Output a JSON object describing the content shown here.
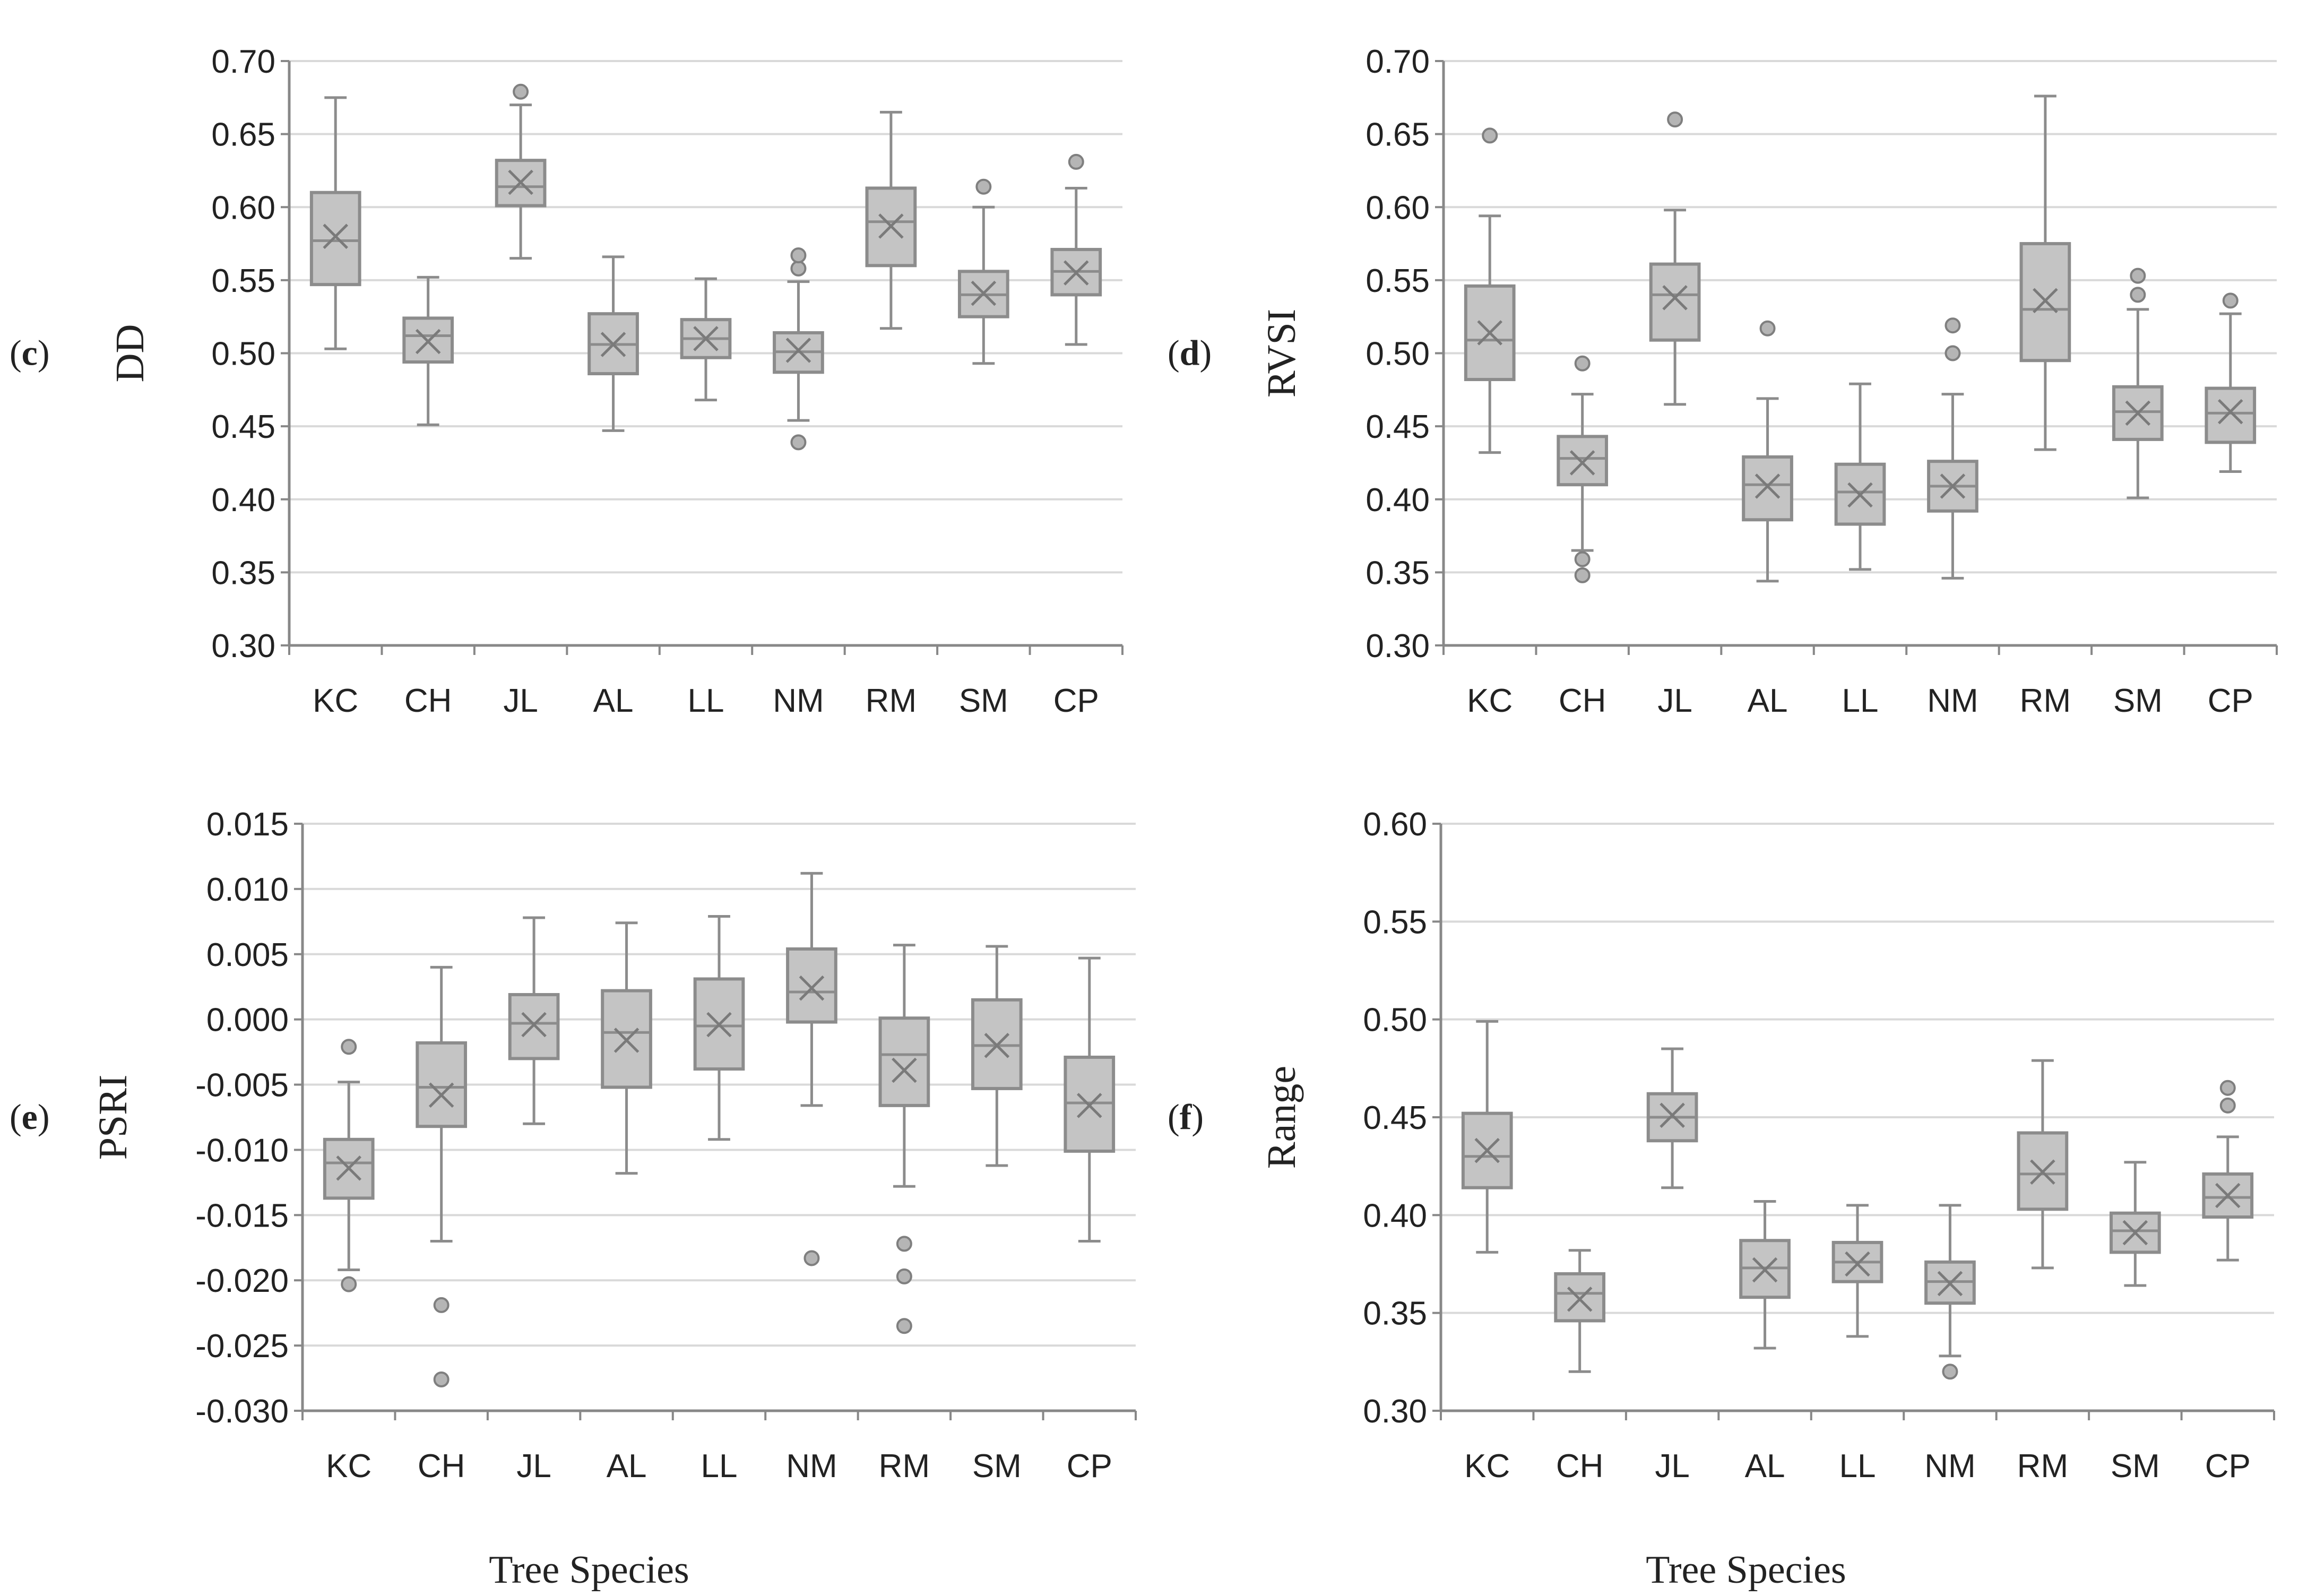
{
  "shared": {
    "categories": [
      "KC",
      "CH",
      "JL",
      "AL",
      "LL",
      "NM",
      "RM",
      "SM",
      "CP"
    ],
    "xlabel": "Tree Species"
  },
  "chart_data": [
    {
      "type": "box",
      "panel": "(c)",
      "ylabel": "DD",
      "categories": [
        "KC",
        "CH",
        "JL",
        "AL",
        "LL",
        "NM",
        "RM",
        "SM",
        "CP"
      ],
      "ylim": [
        0.3,
        0.7
      ],
      "yticks": [
        0.3,
        0.35,
        0.4,
        0.45,
        0.5,
        0.55,
        0.6,
        0.65,
        0.7
      ],
      "decimals": 2,
      "grid": true,
      "boxes": [
        {
          "category": "KC",
          "min": 0.503,
          "q1": 0.547,
          "median": 0.577,
          "q3": 0.61,
          "max": 0.675,
          "mean": 0.58,
          "outliers": []
        },
        {
          "category": "CH",
          "min": 0.451,
          "q1": 0.494,
          "median": 0.512,
          "q3": 0.524,
          "max": 0.552,
          "mean": 0.508,
          "outliers": []
        },
        {
          "category": "JL",
          "min": 0.565,
          "q1": 0.601,
          "median": 0.614,
          "q3": 0.632,
          "max": 0.67,
          "mean": 0.617,
          "outliers": [
            0.679
          ]
        },
        {
          "category": "AL",
          "min": 0.447,
          "q1": 0.486,
          "median": 0.506,
          "q3": 0.527,
          "max": 0.566,
          "mean": 0.506,
          "outliers": []
        },
        {
          "category": "LL",
          "min": 0.468,
          "q1": 0.497,
          "median": 0.51,
          "q3": 0.523,
          "max": 0.551,
          "mean": 0.51,
          "outliers": []
        },
        {
          "category": "NM",
          "min": 0.454,
          "q1": 0.487,
          "median": 0.501,
          "q3": 0.514,
          "max": 0.549,
          "mean": 0.502,
          "outliers": [
            0.439,
            0.558,
            0.567
          ]
        },
        {
          "category": "RM",
          "min": 0.517,
          "q1": 0.56,
          "median": 0.59,
          "q3": 0.613,
          "max": 0.665,
          "mean": 0.587,
          "outliers": []
        },
        {
          "category": "SM",
          "min": 0.493,
          "q1": 0.525,
          "median": 0.54,
          "q3": 0.556,
          "max": 0.6,
          "mean": 0.541,
          "outliers": [
            0.614
          ]
        },
        {
          "category": "CP",
          "min": 0.506,
          "q1": 0.54,
          "median": 0.556,
          "q3": 0.571,
          "max": 0.613,
          "mean": 0.555,
          "outliers": [
            0.631
          ]
        }
      ]
    },
    {
      "type": "box",
      "panel": "(d)",
      "ylabel": "RVSI",
      "categories": [
        "KC",
        "CH",
        "JL",
        "AL",
        "LL",
        "NM",
        "RM",
        "SM",
        "CP"
      ],
      "ylim": [
        0.3,
        0.7
      ],
      "yticks": [
        0.3,
        0.35,
        0.4,
        0.45,
        0.5,
        0.55,
        0.6,
        0.65,
        0.7
      ],
      "decimals": 2,
      "grid": true,
      "boxes": [
        {
          "category": "KC",
          "min": 0.432,
          "q1": 0.482,
          "median": 0.509,
          "q3": 0.546,
          "max": 0.594,
          "mean": 0.514,
          "outliers": [
            0.649
          ]
        },
        {
          "category": "CH",
          "min": 0.365,
          "q1": 0.41,
          "median": 0.428,
          "q3": 0.443,
          "max": 0.472,
          "mean": 0.425,
          "outliers": [
            0.348,
            0.359,
            0.493
          ]
        },
        {
          "category": "JL",
          "min": 0.465,
          "q1": 0.509,
          "median": 0.54,
          "q3": 0.561,
          "max": 0.598,
          "mean": 0.538,
          "outliers": [
            0.66
          ]
        },
        {
          "category": "AL",
          "min": 0.344,
          "q1": 0.386,
          "median": 0.41,
          "q3": 0.429,
          "max": 0.469,
          "mean": 0.409,
          "outliers": [
            0.517
          ]
        },
        {
          "category": "LL",
          "min": 0.352,
          "q1": 0.383,
          "median": 0.405,
          "q3": 0.424,
          "max": 0.479,
          "mean": 0.403,
          "outliers": []
        },
        {
          "category": "NM",
          "min": 0.346,
          "q1": 0.392,
          "median": 0.409,
          "q3": 0.426,
          "max": 0.472,
          "mean": 0.409,
          "outliers": [
            0.5,
            0.519
          ]
        },
        {
          "category": "RM",
          "min": 0.434,
          "q1": 0.495,
          "median": 0.53,
          "q3": 0.575,
          "max": 0.676,
          "mean": 0.536,
          "outliers": []
        },
        {
          "category": "SM",
          "min": 0.401,
          "q1": 0.441,
          "median": 0.46,
          "q3": 0.477,
          "max": 0.53,
          "mean": 0.459,
          "outliers": [
            0.54,
            0.553
          ]
        },
        {
          "category": "CP",
          "min": 0.419,
          "q1": 0.439,
          "median": 0.459,
          "q3": 0.476,
          "max": 0.527,
          "mean": 0.46,
          "outliers": [
            0.536
          ]
        }
      ]
    },
    {
      "type": "box",
      "panel": "(e)",
      "ylabel": "PSRI",
      "categories": [
        "KC",
        "CH",
        "JL",
        "AL",
        "LL",
        "NM",
        "RM",
        "SM",
        "CP"
      ],
      "ylim": [
        -0.03,
        0.015
      ],
      "yticks": [
        -0.03,
        -0.025,
        -0.02,
        -0.015,
        -0.01,
        -0.005,
        0.0,
        0.005,
        0.01,
        0.015
      ],
      "decimals": 3,
      "grid": true,
      "boxes": [
        {
          "category": "KC",
          "min": -0.0192,
          "q1": -0.0137,
          "median": -0.011,
          "q3": -0.0092,
          "max": -0.0048,
          "mean": -0.0114,
          "outliers": [
            -0.0203,
            -0.0021
          ]
        },
        {
          "category": "CH",
          "min": -0.017,
          "q1": -0.0082,
          "median": -0.0052,
          "q3": -0.0018,
          "max": 0.004,
          "mean": -0.0058,
          "outliers": [
            -0.0276,
            -0.0219
          ]
        },
        {
          "category": "JL",
          "min": -0.008,
          "q1": -0.003,
          "median": -0.0003,
          "q3": 0.0019,
          "max": 0.0078,
          "mean": -0.0004,
          "outliers": []
        },
        {
          "category": "AL",
          "min": -0.0118,
          "q1": -0.0052,
          "median": -0.001,
          "q3": 0.0022,
          "max": 0.0074,
          "mean": -0.0016,
          "outliers": []
        },
        {
          "category": "LL",
          "min": -0.0092,
          "q1": -0.0038,
          "median": -0.0005,
          "q3": 0.0031,
          "max": 0.0079,
          "mean": -0.0004,
          "outliers": []
        },
        {
          "category": "NM",
          "min": -0.0066,
          "q1": -0.0002,
          "median": 0.0021,
          "q3": 0.0054,
          "max": 0.0112,
          "mean": 0.0024,
          "outliers": [
            -0.0183
          ]
        },
        {
          "category": "RM",
          "min": -0.0128,
          "q1": -0.0066,
          "median": -0.0027,
          "q3": 0.0001,
          "max": 0.0057,
          "mean": -0.0039,
          "outliers": [
            -0.0235,
            -0.0197,
            -0.0172
          ]
        },
        {
          "category": "SM",
          "min": -0.0112,
          "q1": -0.0053,
          "median": -0.002,
          "q3": 0.0015,
          "max": 0.0056,
          "mean": -0.002,
          "outliers": []
        },
        {
          "category": "CP",
          "min": -0.017,
          "q1": -0.0101,
          "median": -0.0064,
          "q3": -0.0029,
          "max": 0.0047,
          "mean": -0.0066,
          "outliers": []
        }
      ]
    },
    {
      "type": "box",
      "panel": "(f)",
      "ylabel": "Range",
      "categories": [
        "KC",
        "CH",
        "JL",
        "AL",
        "LL",
        "NM",
        "RM",
        "SM",
        "CP"
      ],
      "ylim": [
        0.3,
        0.6
      ],
      "yticks": [
        0.3,
        0.35,
        0.4,
        0.45,
        0.5,
        0.55,
        0.6
      ],
      "decimals": 2,
      "grid": true,
      "boxes": [
        {
          "category": "KC",
          "min": 0.381,
          "q1": 0.414,
          "median": 0.43,
          "q3": 0.452,
          "max": 0.499,
          "mean": 0.433,
          "outliers": []
        },
        {
          "category": "CH",
          "min": 0.32,
          "q1": 0.346,
          "median": 0.36,
          "q3": 0.37,
          "max": 0.382,
          "mean": 0.357,
          "outliers": []
        },
        {
          "category": "JL",
          "min": 0.414,
          "q1": 0.438,
          "median": 0.45,
          "q3": 0.462,
          "max": 0.485,
          "mean": 0.451,
          "outliers": []
        },
        {
          "category": "AL",
          "min": 0.332,
          "q1": 0.358,
          "median": 0.373,
          "q3": 0.387,
          "max": 0.407,
          "mean": 0.372,
          "outliers": []
        },
        {
          "category": "LL",
          "min": 0.338,
          "q1": 0.366,
          "median": 0.376,
          "q3": 0.386,
          "max": 0.405,
          "mean": 0.375,
          "outliers": []
        },
        {
          "category": "NM",
          "min": 0.328,
          "q1": 0.355,
          "median": 0.366,
          "q3": 0.376,
          "max": 0.405,
          "mean": 0.365,
          "outliers": [
            0.32
          ]
        },
        {
          "category": "RM",
          "min": 0.373,
          "q1": 0.403,
          "median": 0.421,
          "q3": 0.442,
          "max": 0.479,
          "mean": 0.422,
          "outliers": []
        },
        {
          "category": "SM",
          "min": 0.364,
          "q1": 0.381,
          "median": 0.392,
          "q3": 0.401,
          "max": 0.427,
          "mean": 0.391,
          "outliers": []
        },
        {
          "category": "CP",
          "min": 0.377,
          "q1": 0.399,
          "median": 0.409,
          "q3": 0.421,
          "max": 0.44,
          "mean": 0.41,
          "outliers": [
            0.456,
            0.465
          ]
        }
      ]
    }
  ]
}
